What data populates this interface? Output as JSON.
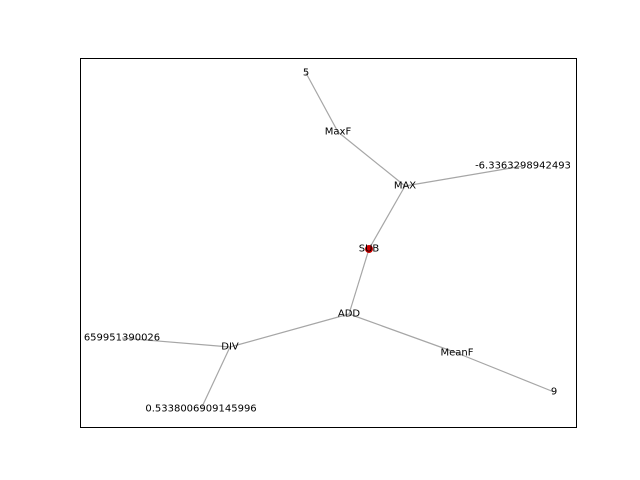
{
  "graph": {
    "root_node_color": "#cc0000",
    "edge_color": "#a6a6a6",
    "nodes": [
      {
        "id": "sub",
        "label": "SUB",
        "root": true
      },
      {
        "id": "max",
        "label": "MAX"
      },
      {
        "id": "maxf",
        "label": "MaxF"
      },
      {
        "id": "five",
        "label": "5"
      },
      {
        "id": "neg",
        "label": "-6.3363298942493"
      },
      {
        "id": "add",
        "label": "ADD"
      },
      {
        "id": "div",
        "label": "DIV"
      },
      {
        "id": "left",
        "label": "659951390026"
      },
      {
        "id": "half",
        "label": "0.5338006909145996"
      },
      {
        "id": "meanf",
        "label": "MeanF"
      },
      {
        "id": "nine",
        "label": "9"
      }
    ],
    "edges": [
      [
        "sub",
        "max"
      ],
      [
        "max",
        "maxf"
      ],
      [
        "maxf",
        "five"
      ],
      [
        "max",
        "neg"
      ],
      [
        "sub",
        "add"
      ],
      [
        "add",
        "div"
      ],
      [
        "div",
        "left"
      ],
      [
        "div",
        "half"
      ],
      [
        "add",
        "meanf"
      ],
      [
        "meanf",
        "nine"
      ]
    ]
  }
}
